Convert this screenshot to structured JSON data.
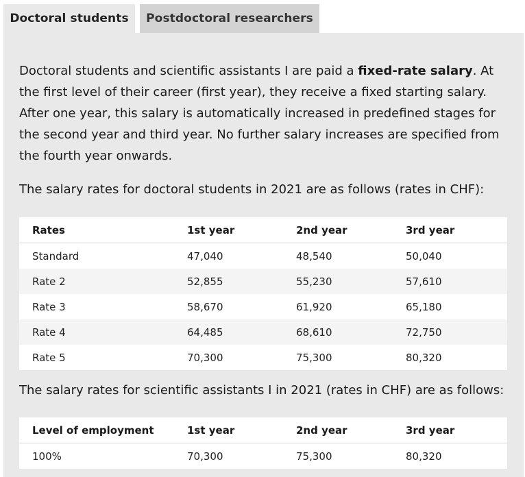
{
  "tabs": [
    {
      "label": "Doctoral students",
      "active": true
    },
    {
      "label": "Postdoctoral researchers",
      "active": false
    }
  ],
  "intro": {
    "before": "Doctoral students and scientific assistants I are paid a ",
    "bold": "fixed-rate salary",
    "after": ". At the first level of their career (first year), they receive a fixed starting salary. After one year, this salary is automatically increased in predefined stages for the second year and third year. No further salary increases are specified from the fourth year onwards."
  },
  "doctoral": {
    "lead": "The salary rates for doctoral students in 2021 are as follows (rates in CHF):",
    "headers": [
      "Rates",
      "1st year",
      "2nd year",
      "3rd year"
    ],
    "rows": [
      [
        "Standard",
        "47,040",
        "48,540",
        "50,040"
      ],
      [
        "Rate 2",
        "52,855",
        "55,230",
        "57,610"
      ],
      [
        "Rate 3",
        "58,670",
        "61,920",
        "65,180"
      ],
      [
        "Rate 4",
        "64,485",
        "68,610",
        "72,750"
      ],
      [
        "Rate 5",
        "70,300",
        "75,300",
        "80,320"
      ]
    ]
  },
  "assistants": {
    "lead": "The salary rates for scientific assistants I in 2021 (rates in CHF) are as follows:",
    "headers": [
      "Level of employment",
      "1st year",
      "2nd year",
      "3rd year"
    ],
    "rows": [
      [
        "100%",
        "70,300",
        "75,300",
        "80,320"
      ]
    ]
  }
}
